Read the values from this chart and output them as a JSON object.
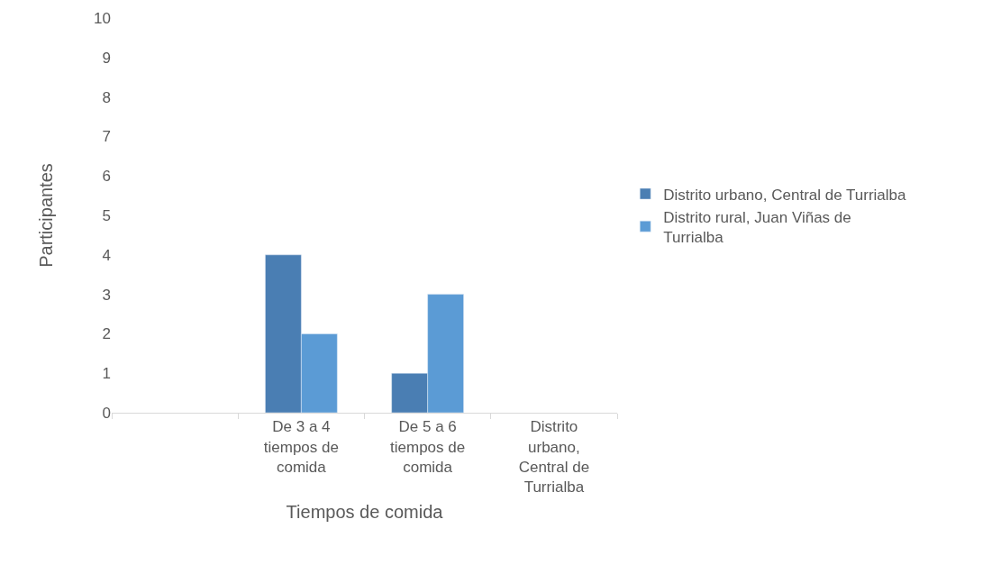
{
  "chart_data": {
    "type": "bar",
    "xlabel": "Tiempos de comida",
    "ylabel": "Participantes",
    "categories": [
      null,
      "De 3 a 4 tiempos de comida",
      "De 5 a 6 tiempos de comida",
      "Distrito urbano, Central de Turrialba"
    ],
    "series": [
      {
        "name": "Distrito urbano, Central de Turrialba",
        "color": "#4a7eb3",
        "values": [
          null,
          4,
          1,
          null
        ]
      },
      {
        "name": "Distrito rural, Juan Viñas de Turrialba",
        "color": "#5b9bd5",
        "values": [
          null,
          2,
          3,
          null
        ]
      }
    ],
    "ylim": [
      0,
      10
    ],
    "yticks": [
      0,
      1,
      2,
      3,
      4,
      5,
      6,
      7,
      8,
      9,
      10
    ],
    "legend": "right"
  }
}
